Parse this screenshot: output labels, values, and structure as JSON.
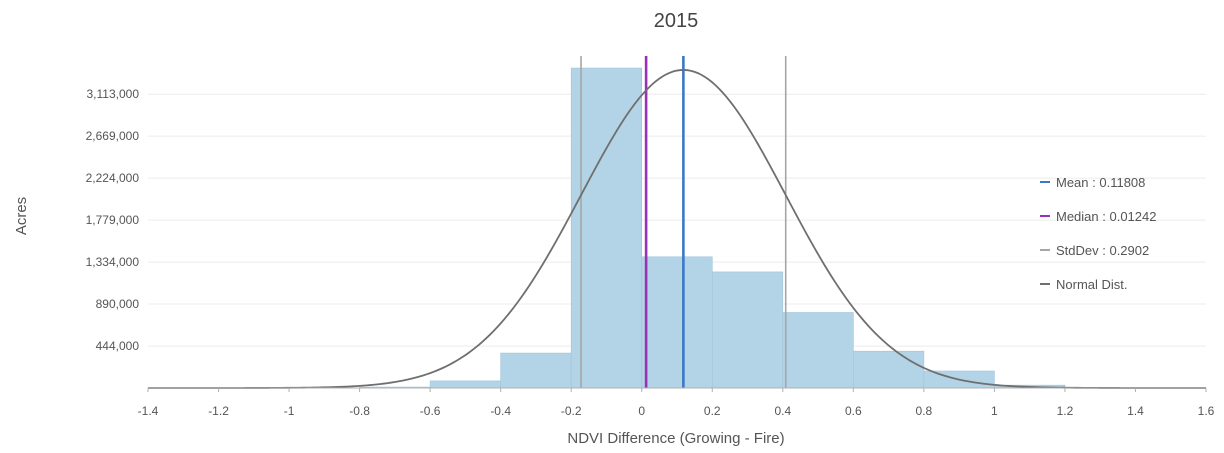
{
  "chart_data": {
    "type": "bar",
    "title": "2015",
    "xlabel": "NDVI Difference (Growing - Fire)",
    "ylabel": "Acres",
    "xlim": [
      -1.4,
      1.6
    ],
    "ylim": [
      0,
      3560000
    ],
    "x_ticks": [
      {
        "value": -1.4,
        "label": "-1.4"
      },
      {
        "value": -1.2,
        "label": "-1.2"
      },
      {
        "value": -1.0,
        "label": "-1"
      },
      {
        "value": -0.8,
        "label": "-0.8"
      },
      {
        "value": -0.6,
        "label": "-0.6"
      },
      {
        "value": -0.4,
        "label": "-0.4"
      },
      {
        "value": -0.2,
        "label": "-0.2"
      },
      {
        "value": 0.0,
        "label": "0"
      },
      {
        "value": 0.2,
        "label": "0.2"
      },
      {
        "value": 0.4,
        "label": "0.4"
      },
      {
        "value": 0.6,
        "label": "0.6"
      },
      {
        "value": 0.8,
        "label": "0.8"
      },
      {
        "value": 1.0,
        "label": "1"
      },
      {
        "value": 1.2,
        "label": "1.2"
      },
      {
        "value": 1.4,
        "label": "1.4"
      },
      {
        "value": 1.6,
        "label": "1.6"
      }
    ],
    "y_ticks": [
      {
        "value": 444000,
        "label": "444,000"
      },
      {
        "value": 890000,
        "label": "890,000"
      },
      {
        "value": 1334000,
        "label": "1,334,000"
      },
      {
        "value": 1779000,
        "label": "1,779,000"
      },
      {
        "value": 2224000,
        "label": "2,224,000"
      },
      {
        "value": 2669000,
        "label": "2,669,000"
      },
      {
        "value": 3113000,
        "label": "3,113,000"
      }
    ],
    "grid": true,
    "bins": [
      {
        "x0": -0.8,
        "x1": -0.6,
        "value": 10000
      },
      {
        "x0": -0.6,
        "x1": -0.4,
        "value": 75000
      },
      {
        "x0": -0.4,
        "x1": -0.2,
        "value": 370000
      },
      {
        "x0": -0.2,
        "x1": 0.0,
        "value": 3390000
      },
      {
        "x0": 0.0,
        "x1": 0.2,
        "value": 1390000
      },
      {
        "x0": 0.2,
        "x1": 0.4,
        "value": 1230000
      },
      {
        "x0": 0.4,
        "x1": 0.6,
        "value": 800000
      },
      {
        "x0": 0.6,
        "x1": 0.8,
        "value": 390000
      },
      {
        "x0": 0.8,
        "x1": 1.0,
        "value": 180000
      },
      {
        "x0": 1.0,
        "x1": 1.2,
        "value": 30000
      }
    ],
    "mean": 0.11808,
    "median": 0.01242,
    "stddev": 0.2902,
    "normal_peak": 3370000,
    "legend": {
      "placement": "right",
      "entries": [
        {
          "key": "mean",
          "label": "Mean : 0.11808",
          "color": "#3b78c8"
        },
        {
          "key": "median",
          "label": "Median : 0.01242",
          "color": "#9b30b8"
        },
        {
          "key": "stddev",
          "label": "StdDev : 0.2902",
          "color": "#a6a6a6"
        },
        {
          "key": "normal",
          "label": "Normal Dist.",
          "color": "#6f6f6f"
        }
      ]
    },
    "colors": {
      "bar": "#b3d4e6",
      "bar_stroke": "#9ec4dc",
      "mean": "#3b78c8",
      "median": "#9b30b8",
      "stddev": "#a6a6a6",
      "normal": "#6f6f6f",
      "grid": "#ececec",
      "axis": "#b0b0b0"
    }
  }
}
